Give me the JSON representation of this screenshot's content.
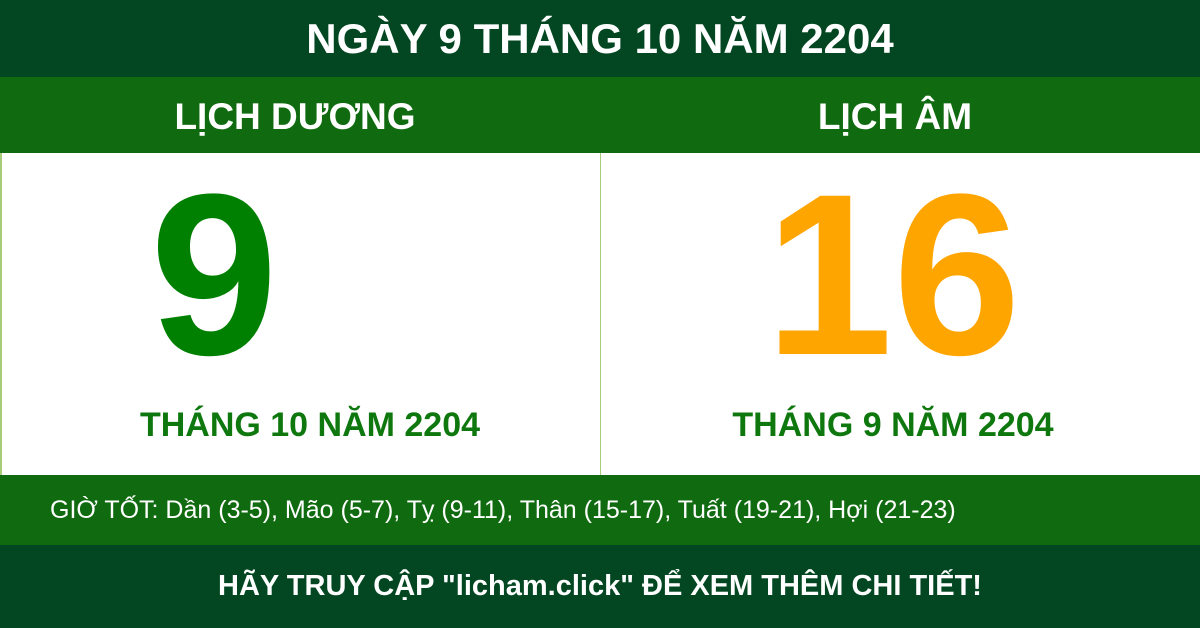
{
  "header": {
    "title": "NGÀY 9 THÁNG 10 NĂM 2204"
  },
  "solar": {
    "label": "LỊCH DƯƠNG",
    "day": "9",
    "month_year": "THÁNG 10 NĂM 2204",
    "color": "#008000"
  },
  "lunar": {
    "label": "LỊCH ÂM",
    "day": "16",
    "month_year": "THÁNG 9 NĂM 2204",
    "color": "#ffa500"
  },
  "good_hours": "GIỜ TỐT: Dần (3-5), Mão (5-7), Tỵ (9-11), Thân (15-17), Tuất (19-21), Hợi (21-23)",
  "footer": {
    "text": "HÃY TRUY CẬP \"licham.click\" ĐỂ XEM THÊM CHI TIẾT!"
  }
}
